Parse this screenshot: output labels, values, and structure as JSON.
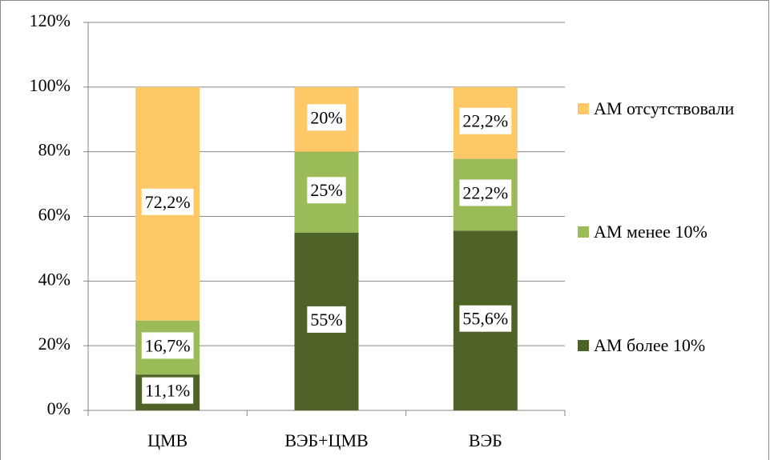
{
  "chart_data": {
    "type": "bar",
    "stacked": true,
    "categories": [
      "ЦМВ",
      "ВЭБ+ЦМВ",
      "ВЭБ"
    ],
    "series": [
      {
        "name": "АМ более 10%",
        "color": "#4f6228",
        "values": [
          11.1,
          55,
          55.6
        ],
        "value_labels": [
          "11,1%",
          "55%",
          "55,6%"
        ]
      },
      {
        "name": "АМ менее 10%",
        "color": "#9bbb59",
        "values": [
          16.7,
          25,
          22.2
        ],
        "value_labels": [
          "16,7%",
          "25%",
          "22,2%"
        ]
      },
      {
        "name": "АМ отсутствовали",
        "color": "#fdc967",
        "values": [
          72.2,
          20,
          22.2
        ],
        "value_labels": [
          "72,2%",
          "20%",
          "22,2%"
        ]
      }
    ],
    "ylim": [
      0,
      120
    ],
    "yticks": [
      {
        "value": 0,
        "label": "0%"
      },
      {
        "value": 20,
        "label": "20%"
      },
      {
        "value": 40,
        "label": "40%"
      },
      {
        "value": 60,
        "label": "60%"
      },
      {
        "value": 80,
        "label": "80%"
      },
      {
        "value": 100,
        "label": "100%"
      },
      {
        "value": 120,
        "label": "120%"
      }
    ],
    "grid": true,
    "legend": "right"
  }
}
